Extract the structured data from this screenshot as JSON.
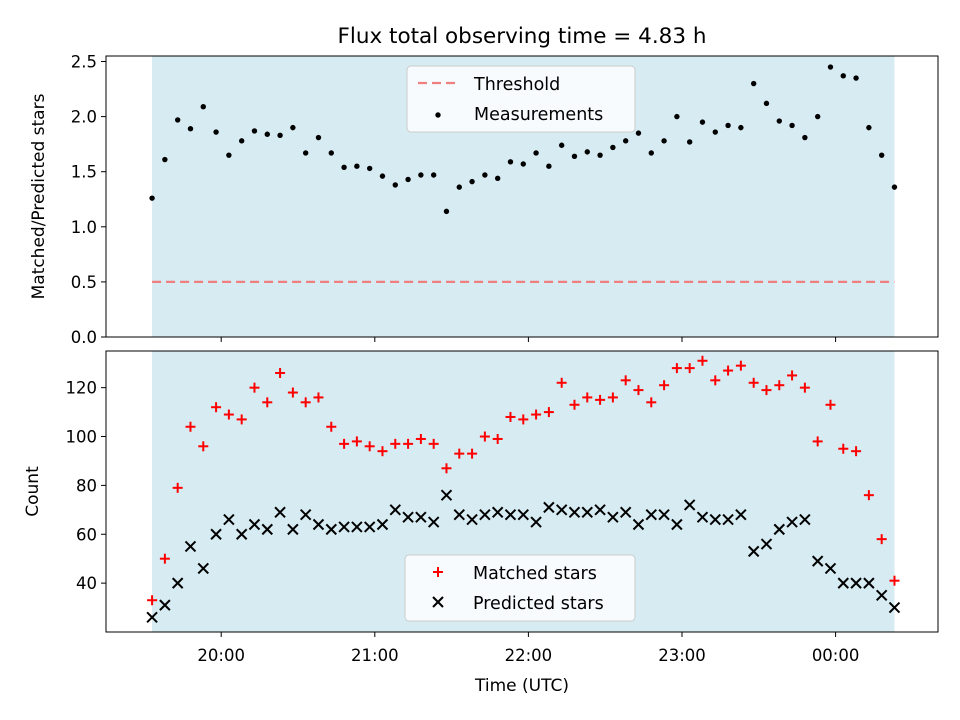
{
  "chart_data": [
    {
      "type": "scatter",
      "title": "Flux total observing time = 4.83 h",
      "xlabel": "",
      "ylabel": "Matched/Predicted stars",
      "ylim": [
        0,
        2.55
      ],
      "yticks": [
        "0.0",
        "0.5",
        "1.0",
        "1.5",
        "2.0",
        "2.5"
      ],
      "xlim": [
        "19:15",
        "00:40"
      ],
      "observing_window": [
        "19:33",
        "00:23"
      ],
      "window_color": "#add8e6",
      "threshold": {
        "name": "Threshold",
        "value": 0.5,
        "color": "#f08080",
        "style": "dashed"
      },
      "legend_position": "upper center",
      "series": [
        {
          "name": "Measurements",
          "color": "#000000",
          "marker": "dot",
          "points": [
            [
              "19:33",
              1.26
            ],
            [
              "19:38",
              1.61
            ],
            [
              "19:43",
              1.97
            ],
            [
              "19:48",
              1.89
            ],
            [
              "19:53",
              2.09
            ],
            [
              "19:58",
              1.86
            ],
            [
              "20:03",
              1.65
            ],
            [
              "20:08",
              1.78
            ],
            [
              "20:13",
              1.87
            ],
            [
              "20:18",
              1.84
            ],
            [
              "20:23",
              1.83
            ],
            [
              "20:28",
              1.9
            ],
            [
              "20:33",
              1.67
            ],
            [
              "20:38",
              1.81
            ],
            [
              "20:43",
              1.67
            ],
            [
              "20:48",
              1.54
            ],
            [
              "20:53",
              1.55
            ],
            [
              "20:58",
              1.53
            ],
            [
              "21:03",
              1.46
            ],
            [
              "21:08",
              1.38
            ],
            [
              "21:13",
              1.43
            ],
            [
              "21:18",
              1.47
            ],
            [
              "21:23",
              1.47
            ],
            [
              "21:28",
              1.14
            ],
            [
              "21:33",
              1.36
            ],
            [
              "21:38",
              1.41
            ],
            [
              "21:43",
              1.47
            ],
            [
              "21:48",
              1.44
            ],
            [
              "21:53",
              1.59
            ],
            [
              "21:58",
              1.57
            ],
            [
              "22:03",
              1.67
            ],
            [
              "22:08",
              1.55
            ],
            [
              "22:13",
              1.74
            ],
            [
              "22:18",
              1.64
            ],
            [
              "22:23",
              1.68
            ],
            [
              "22:28",
              1.65
            ],
            [
              "22:33",
              1.72
            ],
            [
              "22:38",
              1.78
            ],
            [
              "22:43",
              1.85
            ],
            [
              "22:48",
              1.67
            ],
            [
              "22:53",
              1.78
            ],
            [
              "22:58",
              2.0
            ],
            [
              "23:03",
              1.77
            ],
            [
              "23:08",
              1.95
            ],
            [
              "23:13",
              1.86
            ],
            [
              "23:18",
              1.92
            ],
            [
              "23:23",
              1.9
            ],
            [
              "23:28",
              2.3
            ],
            [
              "23:33",
              2.12
            ],
            [
              "23:38",
              1.96
            ],
            [
              "23:43",
              1.92
            ],
            [
              "23:48",
              1.81
            ],
            [
              "23:53",
              2.0
            ],
            [
              "23:58",
              2.45
            ],
            [
              "00:03",
              2.37
            ],
            [
              "00:08",
              2.35
            ],
            [
              "00:13",
              1.9
            ],
            [
              "00:18",
              1.65
            ],
            [
              "00:23",
              1.36
            ]
          ]
        }
      ]
    },
    {
      "type": "scatter",
      "xlabel": "Time (UTC)",
      "ylabel": "Count",
      "ylim": [
        20,
        135
      ],
      "yticks": [
        "40",
        "60",
        "80",
        "100",
        "120"
      ],
      "xticks": [
        "20:00",
        "21:00",
        "22:00",
        "23:00",
        "00:00"
      ],
      "xlim": [
        "19:15",
        "00:40"
      ],
      "observing_window": [
        "19:33",
        "00:23"
      ],
      "window_color": "#add8e6",
      "legend_position": "lower center",
      "series": [
        {
          "name": "Matched stars",
          "color": "#ff0000",
          "marker": "plus",
          "points": [
            [
              "19:33",
              33
            ],
            [
              "19:38",
              50
            ],
            [
              "19:43",
              79
            ],
            [
              "19:48",
              104
            ],
            [
              "19:53",
              96
            ],
            [
              "19:58",
              112
            ],
            [
              "20:03",
              109
            ],
            [
              "20:08",
              107
            ],
            [
              "20:13",
              120
            ],
            [
              "20:18",
              114
            ],
            [
              "20:23",
              126
            ],
            [
              "20:28",
              118
            ],
            [
              "20:33",
              114
            ],
            [
              "20:38",
              116
            ],
            [
              "20:43",
              104
            ],
            [
              "20:48",
              97
            ],
            [
              "20:53",
              98
            ],
            [
              "20:58",
              96
            ],
            [
              "21:03",
              94
            ],
            [
              "21:08",
              97
            ],
            [
              "21:13",
              97
            ],
            [
              "21:18",
              99
            ],
            [
              "21:23",
              97
            ],
            [
              "21:28",
              87
            ],
            [
              "21:33",
              93
            ],
            [
              "21:38",
              93
            ],
            [
              "21:43",
              100
            ],
            [
              "21:48",
              99
            ],
            [
              "21:53",
              108
            ],
            [
              "21:58",
              107
            ],
            [
              "22:03",
              109
            ],
            [
              "22:08",
              110
            ],
            [
              "22:13",
              122
            ],
            [
              "22:18",
              113
            ],
            [
              "22:23",
              116
            ],
            [
              "22:28",
              115
            ],
            [
              "22:33",
              116
            ],
            [
              "22:38",
              123
            ],
            [
              "22:43",
              119
            ],
            [
              "22:48",
              114
            ],
            [
              "22:53",
              121
            ],
            [
              "22:58",
              128
            ],
            [
              "23:03",
              128
            ],
            [
              "23:08",
              131
            ],
            [
              "23:13",
              123
            ],
            [
              "23:18",
              127
            ],
            [
              "23:23",
              129
            ],
            [
              "23:28",
              122
            ],
            [
              "23:33",
              119
            ],
            [
              "23:38",
              121
            ],
            [
              "23:43",
              125
            ],
            [
              "23:48",
              120
            ],
            [
              "23:53",
              98
            ],
            [
              "23:58",
              113
            ],
            [
              "00:03",
              95
            ],
            [
              "00:08",
              94
            ],
            [
              "00:13",
              76
            ],
            [
              "00:18",
              58
            ],
            [
              "00:23",
              41
            ]
          ]
        },
        {
          "name": "Predicted stars",
          "color": "#000000",
          "marker": "x",
          "points": [
            [
              "19:33",
              26
            ],
            [
              "19:38",
              31
            ],
            [
              "19:43",
              40
            ],
            [
              "19:48",
              55
            ],
            [
              "19:53",
              46
            ],
            [
              "19:58",
              60
            ],
            [
              "20:03",
              66
            ],
            [
              "20:08",
              60
            ],
            [
              "20:13",
              64
            ],
            [
              "20:18",
              62
            ],
            [
              "20:23",
              69
            ],
            [
              "20:28",
              62
            ],
            [
              "20:33",
              68
            ],
            [
              "20:38",
              64
            ],
            [
              "20:43",
              62
            ],
            [
              "20:48",
              63
            ],
            [
              "20:53",
              63
            ],
            [
              "20:58",
              63
            ],
            [
              "21:03",
              64
            ],
            [
              "21:08",
              70
            ],
            [
              "21:13",
              67
            ],
            [
              "21:18",
              67
            ],
            [
              "21:23",
              65
            ],
            [
              "21:28",
              76
            ],
            [
              "21:33",
              68
            ],
            [
              "21:38",
              66
            ],
            [
              "21:43",
              68
            ],
            [
              "21:48",
              69
            ],
            [
              "21:53",
              68
            ],
            [
              "21:58",
              68
            ],
            [
              "22:03",
              65
            ],
            [
              "22:08",
              71
            ],
            [
              "22:13",
              70
            ],
            [
              "22:18",
              69
            ],
            [
              "22:23",
              69
            ],
            [
              "22:28",
              70
            ],
            [
              "22:33",
              67
            ],
            [
              "22:38",
              69
            ],
            [
              "22:43",
              64
            ],
            [
              "22:48",
              68
            ],
            [
              "22:53",
              68
            ],
            [
              "22:58",
              64
            ],
            [
              "23:03",
              72
            ],
            [
              "23:08",
              67
            ],
            [
              "23:13",
              66
            ],
            [
              "23:18",
              66
            ],
            [
              "23:23",
              68
            ],
            [
              "23:28",
              53
            ],
            [
              "23:33",
              56
            ],
            [
              "23:38",
              62
            ],
            [
              "23:43",
              65
            ],
            [
              "23:48",
              66
            ],
            [
              "23:53",
              49
            ],
            [
              "23:58",
              46
            ],
            [
              "00:03",
              40
            ],
            [
              "00:08",
              40
            ],
            [
              "00:13",
              40
            ],
            [
              "00:18",
              35
            ],
            [
              "00:23",
              30
            ]
          ]
        }
      ]
    }
  ]
}
